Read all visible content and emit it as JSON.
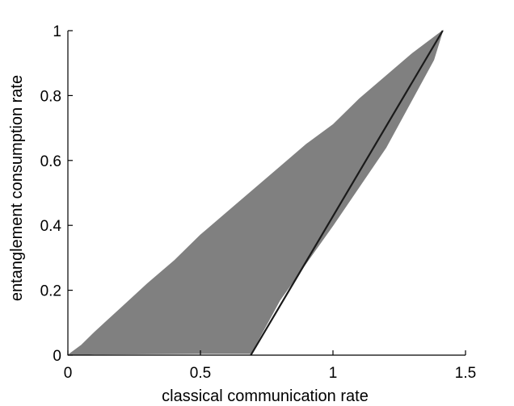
{
  "chart_data": {
    "type": "area",
    "xlabel": "classical communication rate",
    "ylabel": "entanglement consumption rate",
    "xlim": [
      0,
      1.5
    ],
    "ylim": [
      0,
      1
    ],
    "xticks": [
      {
        "value": 0,
        "label": "0"
      },
      {
        "value": 0.5,
        "label": "0.5"
      },
      {
        "value": 1,
        "label": "1"
      },
      {
        "value": 1.5,
        "label": "1.5"
      }
    ],
    "yticks": [
      {
        "value": 0,
        "label": "0"
      },
      {
        "value": 0.2,
        "label": "0.2"
      },
      {
        "value": 0.4,
        "label": "0.4"
      },
      {
        "value": 0.6,
        "label": "0.6"
      },
      {
        "value": 0.8,
        "label": "0.8"
      },
      {
        "value": 1,
        "label": "1"
      }
    ],
    "grid": false,
    "series": [
      {
        "kind": "filled-region",
        "color": "#808080",
        "x": [
          0.0,
          0.05,
          0.1,
          0.2,
          0.3,
          0.4,
          0.5,
          0.6,
          0.7,
          0.8,
          0.9,
          1.0,
          1.1,
          1.2,
          1.3,
          1.414,
          1.38,
          1.2,
          1.0,
          0.8,
          0.69,
          0.5,
          0.3,
          0.1,
          0.0
        ],
        "y": [
          0.0,
          0.03,
          0.07,
          0.145,
          0.22,
          0.29,
          0.37,
          0.44,
          0.51,
          0.58,
          0.65,
          0.71,
          0.79,
          0.86,
          0.93,
          1.0,
          0.91,
          0.64,
          0.4,
          0.17,
          0.005,
          0.005,
          0.004,
          0.003,
          0.0
        ]
      },
      {
        "kind": "line",
        "color": "#1a1a1a",
        "x": [
          0.69,
          1.414
        ],
        "y": [
          0.0,
          1.0
        ]
      }
    ]
  }
}
